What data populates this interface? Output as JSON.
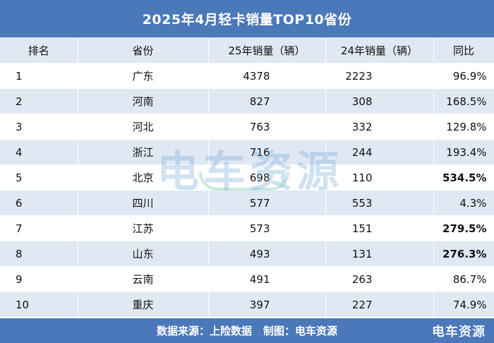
{
  "title": "2025年4月轻卡销量TOP10省份",
  "headers": [
    "排名",
    "省份",
    "25年销量（辆）",
    "24年销量（辆）",
    "同比"
  ],
  "rows": [
    {
      "rank": "1",
      "province": "广东",
      "v25": "4378",
      "v24": "2223",
      "yoy": "96.9%",
      "bold": false
    },
    {
      "rank": "2",
      "province": "河南",
      "v25": "827",
      "v24": "308",
      "yoy": "168.5%",
      "bold": false
    },
    {
      "rank": "3",
      "province": "河北",
      "v25": "763",
      "v24": "332",
      "yoy": "129.8%",
      "bold": false
    },
    {
      "rank": "4",
      "province": "浙江",
      "v25": "716",
      "v24": "244",
      "yoy": "193.4%",
      "bold": false
    },
    {
      "rank": "5",
      "province": "北京",
      "v25": "698",
      "v24": "110",
      "yoy": "534.5%",
      "bold": true
    },
    {
      "rank": "6",
      "province": "四川",
      "v25": "577",
      "v24": "553",
      "yoy": "4.3%",
      "bold": false
    },
    {
      "rank": "7",
      "province": "江苏",
      "v25": "573",
      "v24": "151",
      "yoy": "279.5%",
      "bold": true
    },
    {
      "rank": "8",
      "province": "山东",
      "v25": "493",
      "v24": "131",
      "yoy": "276.3%",
      "bold": true
    },
    {
      "rank": "9",
      "province": "云南",
      "v25": "491",
      "v24": "263",
      "yoy": "86.7%",
      "bold": false
    },
    {
      "rank": "10",
      "province": "重庆",
      "v25": "397",
      "v24": "227",
      "yoy": "74.9%",
      "bold": false
    }
  ],
  "footer": {
    "source": "数据来源：上险数据",
    "maker": "制图：电车资源"
  },
  "watermark": "电车资源",
  "corner_logo": "电车资源",
  "colors": {
    "header_bar": "#4a78b8",
    "stripe": "#dfe8f3"
  }
}
